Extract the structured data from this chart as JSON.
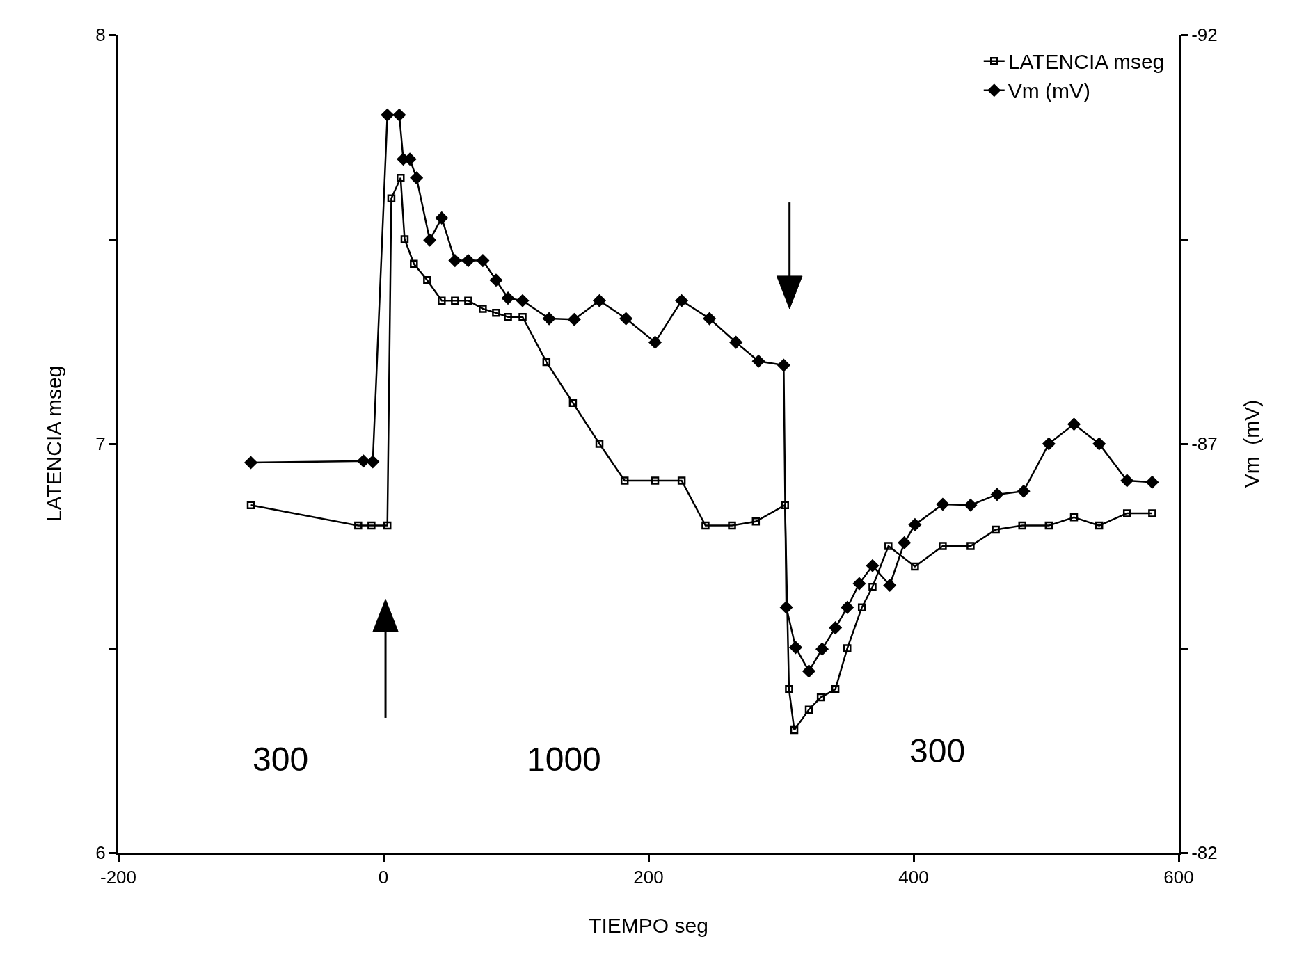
{
  "chart_data": {
    "type": "line",
    "xlabel": "TIEMPO seg",
    "ylabel": "LATENCIA mseg",
    "y2label": "Vm  (mV)",
    "xlim": [
      -200,
      600
    ],
    "xticks": [
      -200,
      0,
      200,
      400,
      600
    ],
    "ylim": [
      6,
      8
    ],
    "yticks": [
      6,
      {
        "value": 6.5,
        "label": null
      },
      7,
      {
        "value": 7.5,
        "label": null
      },
      8
    ],
    "y2lim": [
      -82,
      -92
    ],
    "y2ticks": [
      -82,
      {
        "value": -84.5,
        "label": null
      },
      -87,
      {
        "value": -89.5,
        "label": null
      },
      -92
    ],
    "legend": "top right",
    "line_style": "solid",
    "annotations": [
      "300",
      "1000",
      "300"
    ],
    "series": [
      {
        "name": "LATENCIA mseg",
        "color": "#000000",
        "marker": "square",
        "x": [
          -100,
          -19,
          -9,
          3,
          6,
          13,
          16,
          23,
          33,
          44,
          54,
          64,
          75,
          85,
          94,
          105,
          123,
          143,
          163,
          182,
          205,
          225,
          243,
          263,
          281,
          303,
          306,
          310,
          321,
          330,
          341,
          350,
          361,
          369,
          381,
          401,
          422,
          443,
          462,
          482,
          502,
          521,
          540,
          561,
          580
        ],
        "values": [
          6.85,
          6.8,
          6.8,
          6.8,
          7.6,
          7.65,
          7.5,
          7.44,
          7.4,
          7.35,
          7.35,
          7.35,
          7.33,
          7.32,
          7.31,
          7.31,
          7.2,
          7.1,
          7.0,
          6.91,
          6.91,
          6.91,
          6.8,
          6.8,
          6.81,
          6.85,
          6.4,
          6.3,
          6.35,
          6.38,
          6.4,
          6.5,
          6.6,
          6.65,
          6.75,
          6.7,
          6.75,
          6.75,
          6.79,
          6.8,
          6.8,
          6.82,
          6.8,
          6.83,
          6.83
        ]
      },
      {
        "name": "Vm (mV)",
        "color": "#000000",
        "marker": "diamond",
        "axis": "y2",
        "x": [
          -100,
          -15,
          -8,
          3,
          12,
          15,
          20,
          25,
          35,
          44,
          54,
          64,
          75,
          85,
          94,
          105,
          125,
          144,
          163,
          183,
          205,
          225,
          246,
          266,
          283,
          302,
          304,
          311,
          321,
          331,
          341,
          350,
          359,
          369,
          382,
          393,
          401,
          422,
          443,
          463,
          483,
          502,
          521,
          540,
          561,
          580
        ],
        "values": [
          -86.77,
          -86.79,
          -86.78,
          -91.02,
          -91.02,
          -90.48,
          -90.48,
          -90.25,
          -89.49,
          -89.76,
          -89.24,
          -89.24,
          -89.24,
          -89.0,
          -88.78,
          -88.75,
          -88.53,
          -88.52,
          -88.75,
          -88.53,
          -88.24,
          -88.75,
          -88.53,
          -88.24,
          -88.01,
          -87.96,
          -85.0,
          -84.51,
          -84.22,
          -84.49,
          -84.75,
          -85.0,
          -85.29,
          -85.51,
          -85.27,
          -85.79,
          -86.01,
          -86.26,
          -86.25,
          -86.38,
          -86.42,
          -87.0,
          -87.24,
          -87.0,
          -86.55,
          -86.53
        ]
      }
    ]
  }
}
